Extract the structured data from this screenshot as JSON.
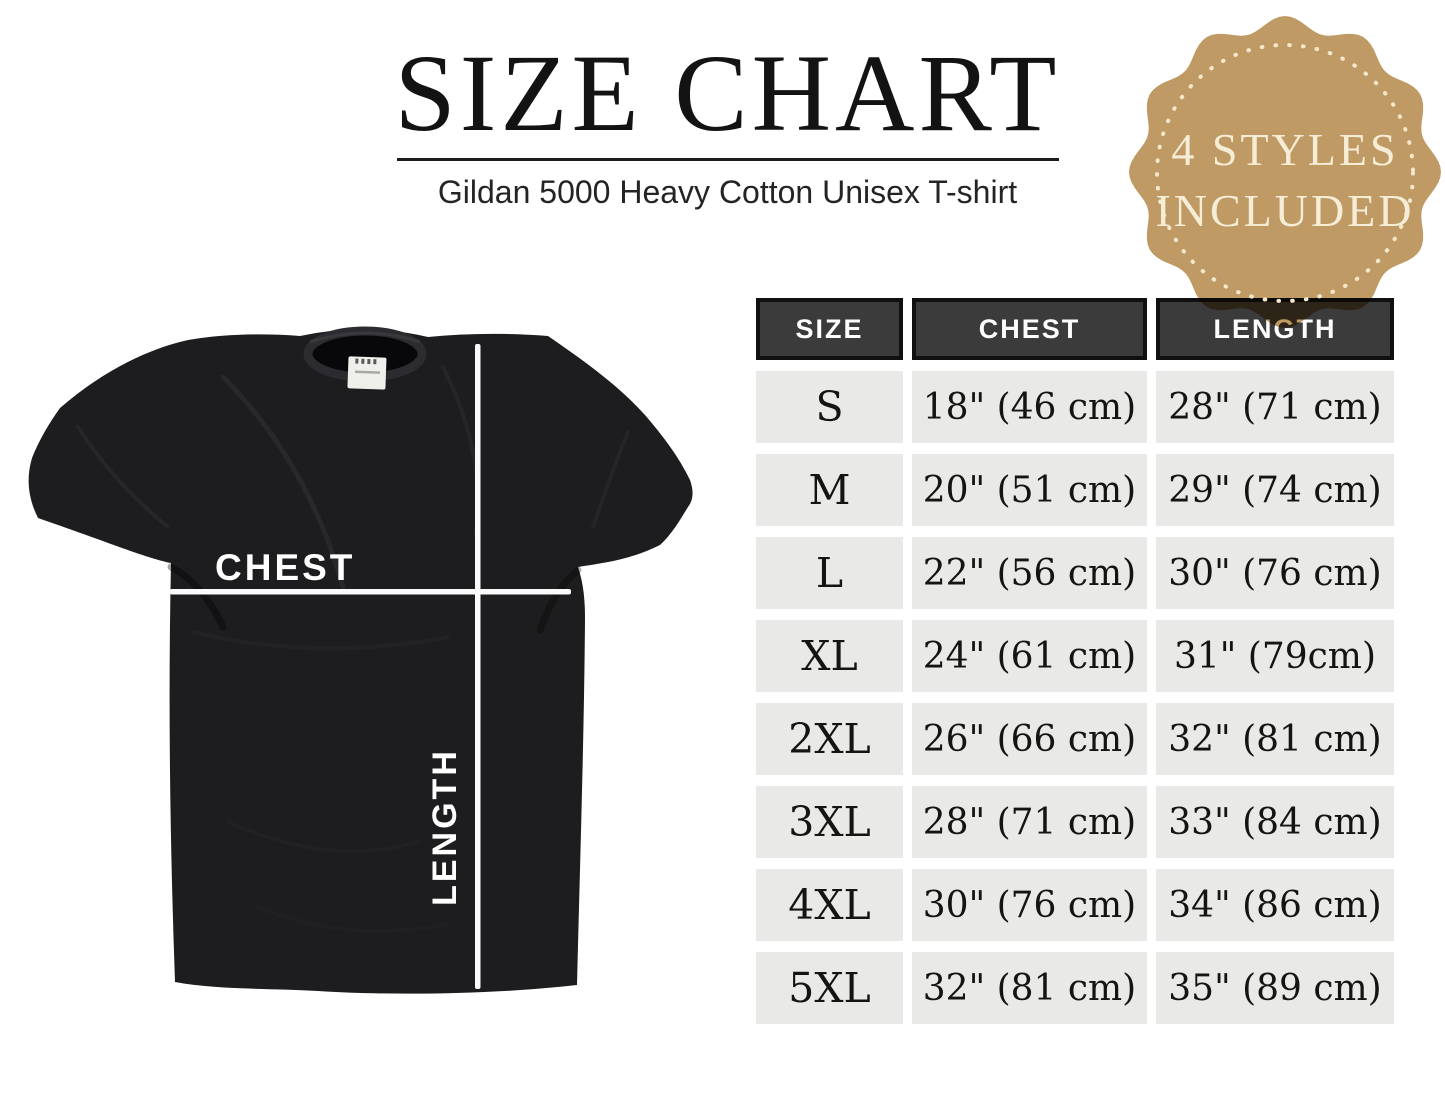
{
  "page": {
    "title": "SIZE CHART",
    "subtitle": "Gildan 5000 Heavy Cotton Unisex T-shirt"
  },
  "badge": {
    "line1": "4 STYLES",
    "line2": "INCLUDED",
    "bg_color": "#bf9a64",
    "text_color": "#f6edd7",
    "dot_color": "#f3e7cc"
  },
  "shirt": {
    "chest_label": "CHEST",
    "length_label": "LENGTH",
    "color": "#1d1d1f",
    "line_color": "#fafafa"
  },
  "table": {
    "headers": [
      "SIZE",
      "CHEST",
      "LENGTH"
    ],
    "header_bg": "#3b3b3b",
    "header_text_color": "#fdfdfd",
    "row_bg": "#e9e9e7",
    "rows": [
      {
        "size": "S",
        "chest": "18\" (46 cm)",
        "length": "28\" (71 cm)"
      },
      {
        "size": "M",
        "chest": "20\" (51 cm)",
        "length": "29\" (74 cm)"
      },
      {
        "size": "L",
        "chest": "22\" (56 cm)",
        "length": "30\" (76 cm)"
      },
      {
        "size": "XL",
        "chest": "24\" (61 cm)",
        "length": "31\" (79cm)"
      },
      {
        "size": "2XL",
        "chest": "26\" (66 cm)",
        "length": "32\" (81 cm)"
      },
      {
        "size": "3XL",
        "chest": "28\" (71 cm)",
        "length": "33\" (84 cm)"
      },
      {
        "size": "4XL",
        "chest": "30\" (76 cm)",
        "length": "34\" (86 cm)"
      },
      {
        "size": "5XL",
        "chest": "32\" (81 cm)",
        "length": "35\" (89 cm)"
      }
    ]
  },
  "chart_data": {
    "type": "table",
    "title": "SIZE CHART",
    "subtitle": "Gildan 5000 Heavy Cotton Unisex T-shirt",
    "columns": [
      "SIZE",
      "CHEST",
      "LENGTH"
    ],
    "rows": [
      [
        "S",
        "18\" (46 cm)",
        "28\" (71 cm)"
      ],
      [
        "M",
        "20\" (51 cm)",
        "29\" (74 cm)"
      ],
      [
        "L",
        "22\" (56 cm)",
        "30\" (76 cm)"
      ],
      [
        "XL",
        "24\" (61 cm)",
        "31\" (79cm)"
      ],
      [
        "2XL",
        "26\" (66 cm)",
        "32\" (81 cm)"
      ],
      [
        "3XL",
        "28\" (71 cm)",
        "33\" (84 cm)"
      ],
      [
        "4XL",
        "30\" (76 cm)",
        "34\" (86 cm)"
      ],
      [
        "5XL",
        "32\" (81 cm)",
        "35\" (89 cm)"
      ]
    ],
    "sizes": [
      "S",
      "M",
      "L",
      "XL",
      "2XL",
      "3XL",
      "4XL",
      "5XL"
    ],
    "chest_inches": [
      18,
      20,
      22,
      24,
      26,
      28,
      30,
      32
    ],
    "chest_cm": [
      46,
      51,
      56,
      61,
      66,
      71,
      76,
      81
    ],
    "length_inches": [
      28,
      29,
      30,
      31,
      32,
      33,
      34,
      35
    ],
    "length_cm": [
      71,
      74,
      76,
      79,
      81,
      84,
      86,
      89
    ],
    "badge_note": "4 STYLES INCLUDED"
  }
}
